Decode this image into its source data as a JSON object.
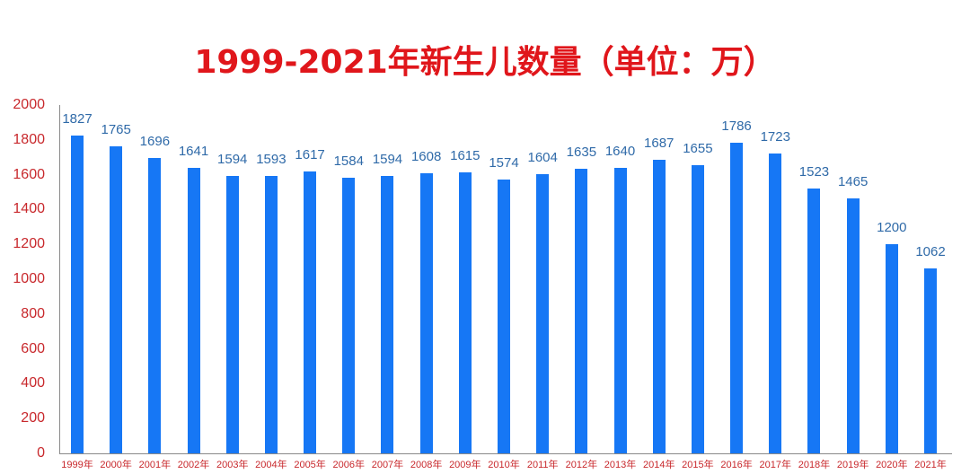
{
  "title": "1999-2021年新生儿数量（单位：万）",
  "colors": {
    "title": "#e0161b",
    "bar": "#1677f5",
    "value_label": "#2f6aa8",
    "axis_label": "#c8282c",
    "axis_line": "#8a8a8a"
  },
  "y_ticks": [
    "0",
    "200",
    "400",
    "600",
    "800",
    "1000",
    "1200",
    "1400",
    "1600",
    "1800",
    "2000"
  ],
  "chart_data": {
    "type": "bar",
    "title": "1999-2021年新生儿数量（单位：万）",
    "xlabel": "",
    "ylabel": "",
    "ylim": [
      0,
      2000
    ],
    "yticks": [
      0,
      200,
      400,
      600,
      800,
      1000,
      1200,
      1400,
      1600,
      1800,
      2000
    ],
    "grid": false,
    "legend": null,
    "data_labels": true,
    "categories": [
      "1999年",
      "2000年",
      "2001年",
      "2002年",
      "2003年",
      "2004年",
      "2005年",
      "2006年",
      "2007年",
      "2008年",
      "2009年",
      "2010年",
      "2011年",
      "2012年",
      "2013年",
      "2014年",
      "2015年",
      "2016年",
      "2017年",
      "2018年",
      "2019年",
      "2020年",
      "2021年"
    ],
    "values": [
      1827,
      1765,
      1696,
      1641,
      1594,
      1593,
      1617,
      1584,
      1594,
      1608,
      1615,
      1574,
      1604,
      1635,
      1640,
      1687,
      1655,
      1786,
      1723,
      1523,
      1465,
      1200,
      1062
    ]
  }
}
